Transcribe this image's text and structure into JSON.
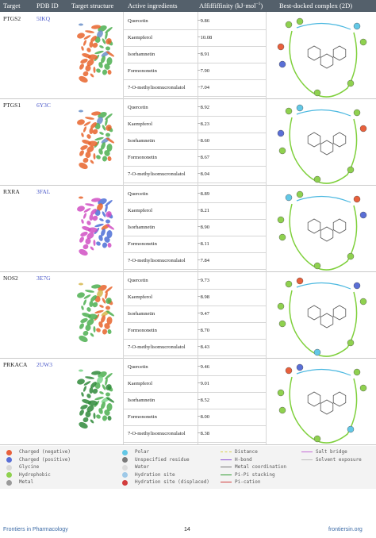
{
  "header": {
    "target": "Target",
    "pdb": "PDB ID",
    "structure": "Target structure",
    "ingredients": "Active ingredients",
    "affinity": "Affiffiffinity (kJ·mol",
    "affinity_sup": "−1",
    "affinity_close": ")",
    "complex": "Best-docked complex (2D)"
  },
  "rows": [
    {
      "target": "PTGS2",
      "pdb": "5IKQ",
      "items": [
        {
          "name": "Quercetin",
          "value": "−9.86"
        },
        {
          "name": "Kaempferol",
          "value": "−10.08"
        },
        {
          "name": "Isorhamnetin",
          "value": "−8.91"
        },
        {
          "name": "Formononetin",
          "value": "−7.90"
        },
        {
          "name": "7-O-methylisomucronulatol",
          "value": "−7.04"
        }
      ]
    },
    {
      "target": "PTGS1",
      "pdb": "6Y3C",
      "items": [
        {
          "name": "Quercetin",
          "value": "−8.92"
        },
        {
          "name": "Kaempferol",
          "value": "−8.23"
        },
        {
          "name": "Isorhamnetin",
          "value": "−8.60"
        },
        {
          "name": "Formononetin",
          "value": "−8.67"
        },
        {
          "name": "7-O-methylisomucronulatol",
          "value": "−8.04"
        }
      ]
    },
    {
      "target": "RXRA",
      "pdb": "3FAL",
      "items": [
        {
          "name": "Quercetin",
          "value": "−8.89"
        },
        {
          "name": "Kaempferol",
          "value": "−8.21"
        },
        {
          "name": "Isorhamnetin",
          "value": "−8.90"
        },
        {
          "name": "Formononetin",
          "value": "−8.11"
        },
        {
          "name": "7-O-methylisomucronulatol",
          "value": "−7.84"
        }
      ]
    },
    {
      "target": "NOS2",
      "pdb": "3E7G",
      "items": [
        {
          "name": "Quercetin",
          "value": "−9.73"
        },
        {
          "name": "Kaempferol",
          "value": "−8.98"
        },
        {
          "name": "Isorhamnetin",
          "value": "−9.47"
        },
        {
          "name": "Formononetin",
          "value": "−8.70"
        },
        {
          "name": "7-O-methylisomucronulatol",
          "value": "−8.43"
        }
      ]
    },
    {
      "target": "PRKACA",
      "pdb": "2UW3",
      "items": [
        {
          "name": "Quercetin",
          "value": "−9.46"
        },
        {
          "name": "Kaempferol",
          "value": "−9.01"
        },
        {
          "name": "Isorhamnetin",
          "value": "−8.52"
        },
        {
          "name": "Formononetin",
          "value": "−8.00"
        },
        {
          "name": "7-O-methylisomucronulatol",
          "value": "−8.38"
        }
      ]
    }
  ],
  "legend": {
    "col1": [
      {
        "label": "Charged (negative)",
        "color": "#e8603c"
      },
      {
        "label": "Charged (positive)",
        "color": "#5a6fd6"
      },
      {
        "label": "Glycine",
        "color": "#d9d9d9"
      },
      {
        "label": "Hydrophobic",
        "color": "#8fd14f"
      },
      {
        "label": "Metal",
        "color": "#9a9a9a"
      }
    ],
    "col2": [
      {
        "label": "Polar",
        "color": "#63c8e6"
      },
      {
        "label": "Unspecified residue",
        "color": "#7a7a7a"
      },
      {
        "label": "Water",
        "color": "#dddddd"
      },
      {
        "label": "Hydration site",
        "color": "#9ec9e8"
      },
      {
        "label": "Hydration site (displaced)",
        "color": "#d23c3c"
      }
    ],
    "col3": [
      {
        "label": "Distance",
        "color": "#d8d050"
      },
      {
        "label": "H-bond",
        "color": "#8a4bd6"
      },
      {
        "label": "Metal coordination",
        "color": "#777777"
      },
      {
        "label": "Pi-Pi stacking",
        "color": "#2d9a2d"
      },
      {
        "label": "Pi-cation",
        "color": "#d23c3c"
      }
    ],
    "col4": [
      {
        "label": "Salt bridge",
        "color": "#c46ad6"
      },
      {
        "label": "Solvent exposure",
        "color": "#bbbbbb"
      }
    ]
  },
  "footer": {
    "journal": "Frontiers in Pharmacology",
    "page": "14",
    "site": "frontiersin.org"
  }
}
